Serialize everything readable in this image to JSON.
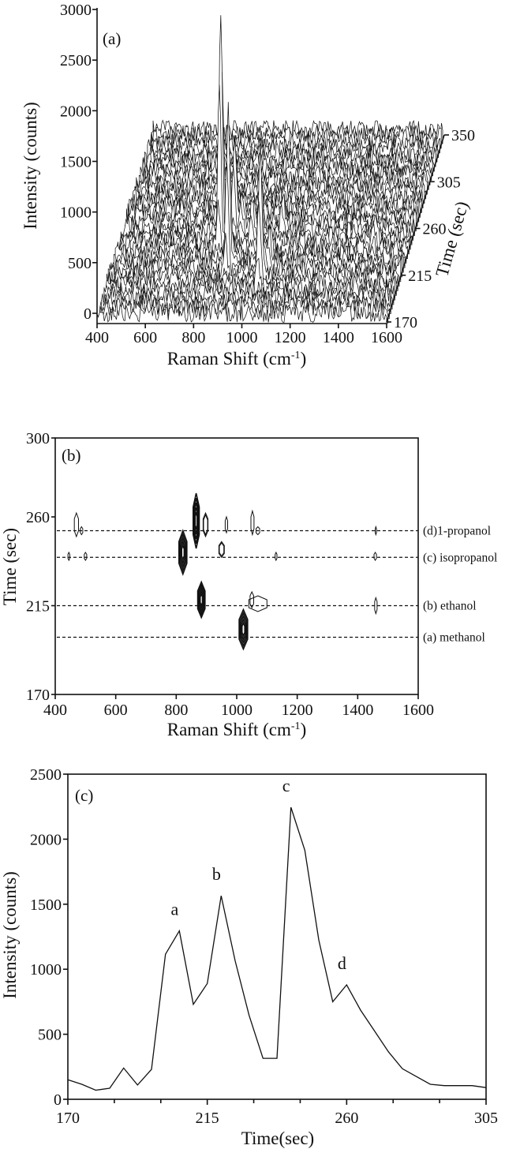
{
  "chart_data": [
    {
      "panel": "(a)",
      "type": "line",
      "style": "3d-waterfall",
      "xlabel": {
        "text": "Raman Shift (cm",
        "sup": "-1",
        "end": ")"
      },
      "ylabel": "Intensity (counts)",
      "zlabel": "Time (sec)",
      "xlim": [
        400,
        1600
      ],
      "ylim": [
        0,
        3000
      ],
      "zlim": [
        170,
        350
      ],
      "xticks": [
        400,
        600,
        800,
        1000,
        1200,
        1400,
        1600
      ],
      "yticks": [
        0,
        500,
        1000,
        1500,
        2000,
        2500,
        3000
      ],
      "zticks": [
        170,
        215,
        260,
        305,
        350
      ],
      "time_step": 4.5,
      "noise_amplitude": 90,
      "peaks": [
        {
          "shift": 1030,
          "time": 206,
          "intensity": 1300
        },
        {
          "shift": 880,
          "time": 219.5,
          "intensity": 1500
        },
        {
          "shift": 1050,
          "time": 219.5,
          "intensity": 350
        },
        {
          "shift": 820,
          "time": 242,
          "intensity": 2300
        },
        {
          "shift": 950,
          "time": 242,
          "intensity": 450
        },
        {
          "shift": 860,
          "time": 255.5,
          "intensity": 900
        },
        {
          "shift": 890,
          "time": 255.5,
          "intensity": 400
        },
        {
          "shift": 970,
          "time": 255.5,
          "intensity": 250
        },
        {
          "shift": 1060,
          "time": 255.5,
          "intensity": 300
        },
        {
          "shift": 1460,
          "time": 240,
          "intensity": 200
        }
      ]
    },
    {
      "panel": "(b)",
      "type": "contour",
      "xlabel": {
        "text": "Raman Shift (cm",
        "sup": "-1",
        "end": ")"
      },
      "ylabel": "Time (sec)",
      "xlim": [
        400,
        1600
      ],
      "ylim": [
        170,
        300
      ],
      "xticks": [
        400,
        600,
        800,
        1000,
        1200,
        1400,
        1600
      ],
      "yticks": [
        170,
        215,
        260,
        300
      ],
      "reference_lines": [
        {
          "time": 253,
          "label": "(d)1-propanol"
        },
        {
          "time": 239.5,
          "label": "(c) isopropanol"
        },
        {
          "time": 215,
          "label": "(b) ethanol"
        },
        {
          "time": 199,
          "label": "(a) methanol"
        }
      ],
      "contours": [
        {
          "shift": 470,
          "time": 256,
          "width": 14,
          "height": 12,
          "levels": 1
        },
        {
          "shift": 487,
          "time": 253,
          "width": 8,
          "height": 4,
          "levels": 1
        },
        {
          "shift": 445,
          "time": 240,
          "width": 6,
          "height": 4,
          "levels": 1
        },
        {
          "shift": 500,
          "time": 240,
          "width": 8,
          "height": 4,
          "levels": 1
        },
        {
          "shift": 822,
          "time": 242,
          "width": 26,
          "height": 22,
          "levels": 5
        },
        {
          "shift": 866,
          "time": 258,
          "width": 20,
          "height": 28,
          "levels": 5
        },
        {
          "shift": 897,
          "time": 256,
          "width": 16,
          "height": 12,
          "levels": 2
        },
        {
          "shift": 966,
          "time": 256,
          "width": 8,
          "height": 8,
          "levels": 1
        },
        {
          "shift": 1052,
          "time": 257,
          "width": 10,
          "height": 12,
          "levels": 1
        },
        {
          "shift": 1070,
          "time": 253,
          "width": 12,
          "height": 4,
          "levels": 1
        },
        {
          "shift": 950,
          "time": 243.5,
          "width": 18,
          "height": 8,
          "levels": 2
        },
        {
          "shift": 1130,
          "time": 240,
          "width": 6,
          "height": 4,
          "levels": 1
        },
        {
          "shift": 1458,
          "time": 240,
          "width": 8,
          "height": 4,
          "levels": 1
        },
        {
          "shift": 1460,
          "time": 253,
          "width": 4,
          "height": 4,
          "levels": 1
        },
        {
          "shift": 883,
          "time": 218,
          "width": 24,
          "height": 18,
          "levels": 5
        },
        {
          "shift": 1070,
          "time": 216,
          "width": 60,
          "height": 8,
          "levels": 1
        },
        {
          "shift": 1050,
          "time": 218,
          "width": 12,
          "height": 8,
          "levels": 1
        },
        {
          "shift": 1022,
          "time": 203,
          "width": 28,
          "height": 20,
          "levels": 5
        },
        {
          "shift": 1460,
          "time": 215,
          "width": 8,
          "height": 8,
          "levels": 1
        }
      ]
    },
    {
      "panel": "(c)",
      "type": "line",
      "xlabel": "Time(sec)",
      "ylabel": "Intensity (counts)",
      "xlim": [
        170,
        305
      ],
      "ylim": [
        0,
        2500
      ],
      "xticks": [
        170,
        215,
        260,
        305
      ],
      "xminor": [
        185,
        200,
        230,
        245,
        275,
        290
      ],
      "yticks": [
        0,
        500,
        1000,
        1500,
        2000,
        2500
      ],
      "x": [
        170,
        174.5,
        179,
        183.5,
        188,
        192.5,
        197,
        201.5,
        206,
        210.5,
        215,
        219.5,
        224,
        228.5,
        233,
        237.5,
        242,
        246.5,
        251,
        255.5,
        260,
        264.5,
        269,
        273.5,
        278,
        282.5,
        287,
        291.5,
        296,
        300.5,
        305
      ],
      "y": [
        150,
        115,
        70,
        85,
        240,
        110,
        230,
        1115,
        1295,
        730,
        890,
        1565,
        1065,
        645,
        315,
        315,
        2245,
        1915,
        1225,
        750,
        880,
        685,
        525,
        365,
        235,
        175,
        115,
        105,
        105,
        105,
        90
      ],
      "annotations": [
        {
          "text": "a",
          "x": 206,
          "y": 1295
        },
        {
          "text": "b",
          "x": 219.5,
          "y": 1565
        },
        {
          "text": "c",
          "x": 242,
          "y": 2245
        },
        {
          "text": "d",
          "x": 260,
          "y": 880
        }
      ]
    }
  ]
}
